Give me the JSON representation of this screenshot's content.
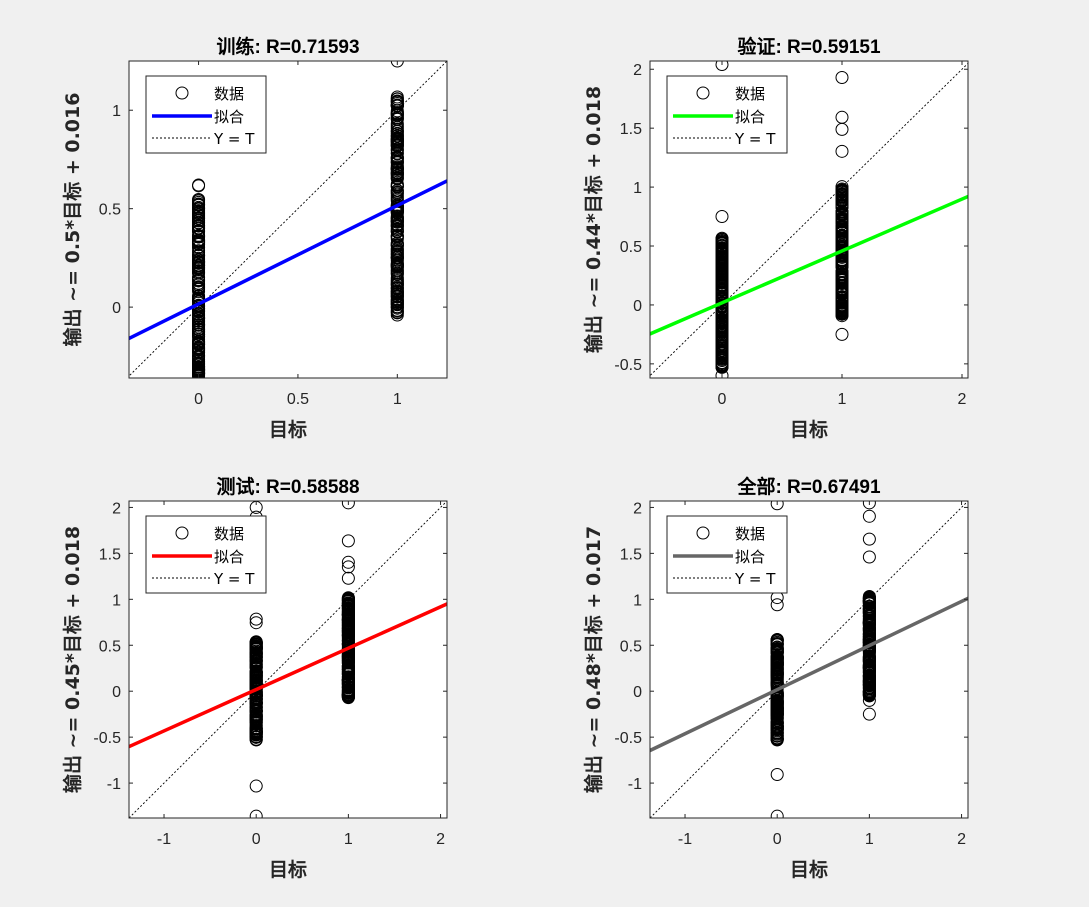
{
  "chart_data": [
    {
      "type": "scatter",
      "title": "训练: R=0.71593",
      "xlabel": "目标",
      "ylabel": "输出 ~= 0.5*目标 + 0.016",
      "xlim": [
        -0.35,
        1.25
      ],
      "ylim": [
        -0.36,
        1.25
      ],
      "xticks": [
        0,
        0.5,
        1
      ],
      "xtick_labels": [
        "0",
        "0.5",
        "1"
      ],
      "yticks": [
        0,
        0.5,
        1
      ],
      "ytick_labels": [
        "0",
        "0.5",
        "1"
      ],
      "fit": {
        "slope": 0.5,
        "intercept": 0.016,
        "color": "#0000ff"
      },
      "data_points": [
        {
          "x": 0,
          "range": [
            -0.35,
            0.62
          ]
        },
        {
          "x": 1,
          "range": [
            -0.04,
            1.25
          ]
        }
      ],
      "legend": {
        "data": "数据",
        "fit": "拟合",
        "identity": "Y = T",
        "placement": "top-left"
      }
    },
    {
      "type": "scatter",
      "title": "验证: R=0.59151",
      "xlabel": "目标",
      "ylabel": "输出 ~= 0.44*目标 + 0.018",
      "xlim": [
        -0.6,
        2.05
      ],
      "ylim": [
        -0.62,
        2.07
      ],
      "xticks": [
        0,
        1,
        2
      ],
      "xtick_labels": [
        "0",
        "1",
        "2"
      ],
      "yticks": [
        -0.5,
        0,
        0.5,
        1,
        1.5,
        2
      ],
      "ytick_labels": [
        "-0.5",
        "0",
        "0.5",
        "1",
        "1.5",
        "2"
      ],
      "fit": {
        "slope": 0.44,
        "intercept": 0.018,
        "color": "#00ff00"
      },
      "data_points": [
        {
          "x": 0,
          "range": [
            -0.6,
            2.04
          ]
        },
        {
          "x": 1,
          "range": [
            -0.25,
            1.93
          ]
        }
      ],
      "legend": {
        "data": "数据",
        "fit": "拟合",
        "identity": "Y = T",
        "placement": "top-left"
      }
    },
    {
      "type": "scatter",
      "title": "测试: R=0.58588",
      "xlabel": "目标",
      "ylabel": "输出 ~= 0.45*目标 + 0.018",
      "xlim": [
        -1.38,
        2.07
      ],
      "ylim": [
        -1.38,
        2.07
      ],
      "xticks": [
        -1,
        0,
        1,
        2
      ],
      "xtick_labels": [
        "-1",
        "0",
        "1",
        "2"
      ],
      "yticks": [
        -1,
        -0.5,
        0,
        0.5,
        1,
        1.5,
        2
      ],
      "ytick_labels": [
        "-1",
        "-0.5",
        "0",
        "0.5",
        "1",
        "1.5",
        "2"
      ],
      "fit": {
        "slope": 0.45,
        "intercept": 0.018,
        "color": "#ff0000"
      },
      "data_points": [
        {
          "x": 0,
          "range": [
            -1.36,
            2.0
          ]
        },
        {
          "x": 1,
          "range": [
            -0.07,
            2.05
          ]
        }
      ],
      "legend": {
        "data": "数据",
        "fit": "拟合",
        "identity": "Y = T",
        "placement": "top-left"
      }
    },
    {
      "type": "scatter",
      "title": "全部: R=0.67491",
      "xlabel": "目标",
      "ylabel": "输出 ~= 0.48*目标 + 0.017",
      "xlim": [
        -1.38,
        2.07
      ],
      "ylim": [
        -1.38,
        2.07
      ],
      "xticks": [
        -1,
        0,
        1,
        2
      ],
      "xtick_labels": [
        "-1",
        "0",
        "1",
        "2"
      ],
      "yticks": [
        -1,
        -0.5,
        0,
        0.5,
        1,
        1.5,
        2
      ],
      "ytick_labels": [
        "-1",
        "-0.5",
        "0",
        "0.5",
        "1",
        "1.5",
        "2"
      ],
      "fit": {
        "slope": 0.48,
        "intercept": 0.017,
        "color": "#666666"
      },
      "data_points": [
        {
          "x": 0,
          "range": [
            -1.36,
            2.04
          ]
        },
        {
          "x": 1,
          "range": [
            -0.25,
            2.05
          ]
        }
      ],
      "legend": {
        "data": "数据",
        "fit": "拟合",
        "identity": "Y = T",
        "placement": "top-left"
      }
    }
  ]
}
